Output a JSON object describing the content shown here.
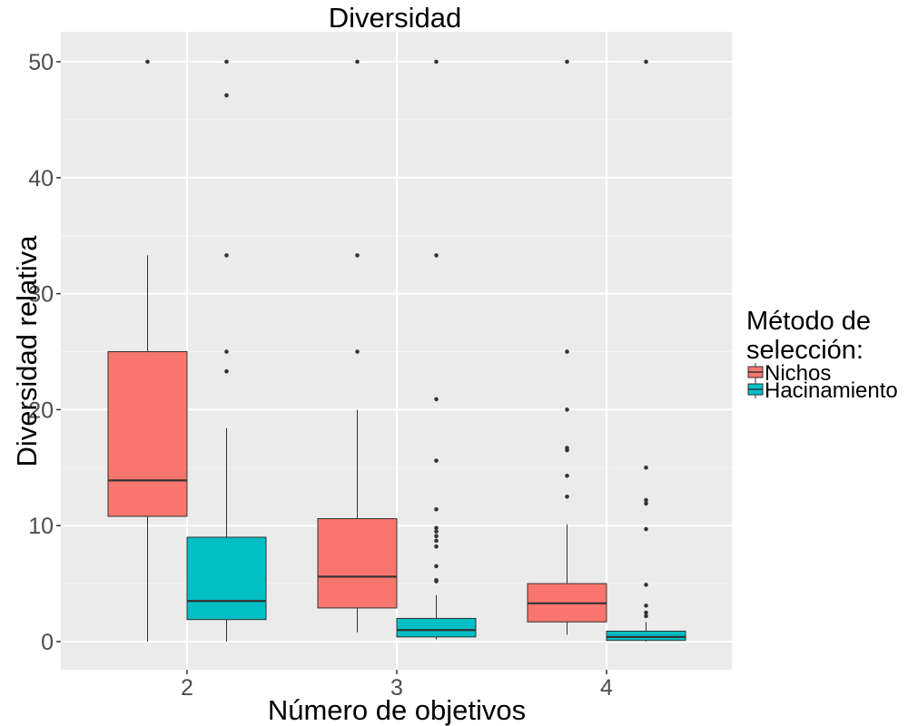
{
  "colors": {
    "panel_background": "#ebebeb",
    "grid_major": "#ffffff",
    "grid_minor": "#f5f5f5",
    "Nichos": "#f8766d",
    "Hacinamiento": "#00bfc4",
    "outline": "#333333"
  },
  "chart_data": {
    "type": "boxplot",
    "title": "Diversidad",
    "xlabel": "Número de objetivos",
    "ylabel": "Diversidad relativa",
    "categories": [
      "2",
      "3",
      "4"
    ],
    "ylim": [
      -2.5,
      52.5
    ],
    "yticks": [
      0,
      10,
      20,
      30,
      40,
      50
    ],
    "grid": true,
    "legend": {
      "title_lines": [
        "Método de",
        "selección:"
      ],
      "position": "right"
    },
    "series": [
      {
        "name": "Nichos",
        "color": "#f8766d",
        "boxes": [
          {
            "category": "2",
            "min": 0,
            "q1": 10.8,
            "median": 13.9,
            "q3": 25,
            "max": 33.3,
            "outliers": [
              50
            ]
          },
          {
            "category": "3",
            "min": 0.8,
            "q1": 2.9,
            "median": 5.6,
            "q3": 10.6,
            "max": 20,
            "outliers": [
              25,
              33.3,
              50
            ]
          },
          {
            "category": "4",
            "min": 0.6,
            "q1": 1.7,
            "median": 3.3,
            "q3": 5,
            "max": 10.1,
            "outliers": [
              12.5,
              14.3,
              16.5,
              16.7,
              20,
              25,
              50
            ]
          }
        ]
      },
      {
        "name": "Hacinamiento",
        "color": "#00bfc4",
        "boxes": [
          {
            "category": "2",
            "min": 0,
            "q1": 1.9,
            "median": 3.5,
            "q3": 9,
            "max": 18.4,
            "outliers": [
              23.3,
              25,
              33.3,
              47.1,
              50
            ]
          },
          {
            "category": "3",
            "min": 0.2,
            "q1": 0.4,
            "median": 1,
            "q3": 2,
            "max": 4,
            "outliers": [
              5.2,
              5.3,
              6.5,
              8.2,
              8.7,
              9.1,
              9.5,
              9.8,
              11.4,
              15.6,
              20.9,
              33.3,
              50
            ]
          },
          {
            "category": "4",
            "min": 0,
            "q1": 0.1,
            "median": 0.4,
            "q3": 0.9,
            "max": 1.7,
            "outliers": [
              2.2,
              2.5,
              3.1,
              4.9,
              9.7,
              11.9,
              12.2,
              15,
              50
            ]
          }
        ]
      }
    ]
  }
}
